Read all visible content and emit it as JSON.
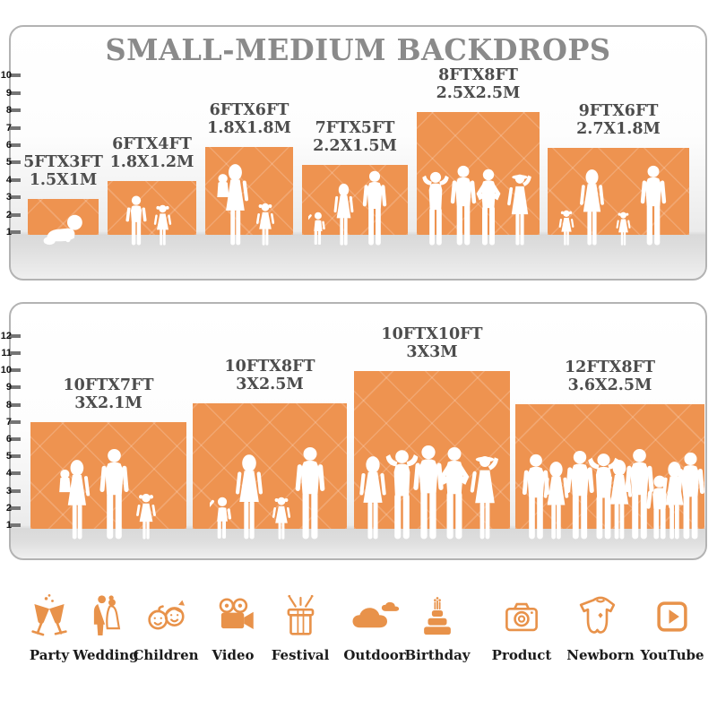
{
  "title": "SMALL-MEDIUM BACKDROPS",
  "panels": [
    {
      "id": "small-medium-1",
      "ruler_ticks": [
        "10",
        "9",
        "8",
        "7",
        "6",
        "5",
        "4",
        "3",
        "2",
        "1"
      ],
      "backdrops": [
        {
          "size_ft": "5FTX3FT",
          "size_m": "1.5X1M"
        },
        {
          "size_ft": "6FTX4FT",
          "size_m": "1.8X1.2M"
        },
        {
          "size_ft": "6FTX6FT",
          "size_m": "1.8X1.8M"
        },
        {
          "size_ft": "7FTX5FT",
          "size_m": "2.2X1.5M"
        },
        {
          "size_ft": "8FTX8FT",
          "size_m": "2.5X2.5M"
        },
        {
          "size_ft": "9FTX6FT",
          "size_m": "2.7X1.8M"
        }
      ]
    },
    {
      "id": "small-medium-2",
      "ruler_ticks": [
        "12",
        "11",
        "10",
        "9",
        "8",
        "7",
        "6",
        "5",
        "4",
        "3",
        "2",
        "1"
      ],
      "backdrops": [
        {
          "size_ft": "10FTX7FT",
          "size_m": "3X2.1M"
        },
        {
          "size_ft": "10FTX8FT",
          "size_m": "3X2.5M"
        },
        {
          "size_ft": "10FTX10FT",
          "size_m": "3X3M"
        },
        {
          "size_ft": "12FTX8FT",
          "size_m": "3.6X2.5M"
        }
      ]
    }
  ],
  "categories": [
    {
      "label": "Party",
      "icon": "party-icon"
    },
    {
      "label": "Wedding",
      "icon": "wedding-icon"
    },
    {
      "label": "Children",
      "icon": "children-icon"
    },
    {
      "label": "Video",
      "icon": "video-icon"
    },
    {
      "label": "Festival",
      "icon": "festival-icon"
    },
    {
      "label": "Outdoor",
      "icon": "outdoor-icon"
    },
    {
      "label": "Birthday",
      "icon": "birthday-icon"
    },
    {
      "label": "Product",
      "icon": "product-icon"
    },
    {
      "label": "Newborn",
      "icon": "newborn-icon"
    },
    {
      "label": "YouTube",
      "icon": "youtube-icon"
    }
  ],
  "colors": {
    "backdrop_orange": "#EE9350",
    "icon_orange": "#E8924A",
    "title_gray": "#8A8A8A",
    "label_gray": "#4C4C4C",
    "silhouette_white": "#FFFFFF"
  }
}
